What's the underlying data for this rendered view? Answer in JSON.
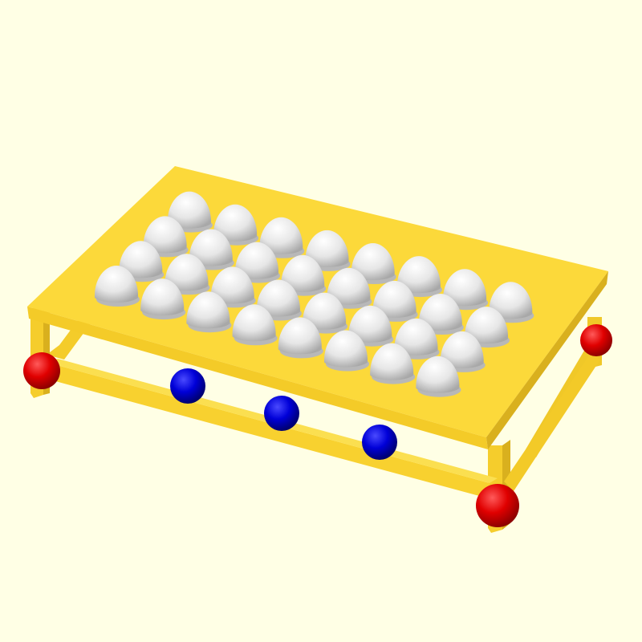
{
  "scene": {
    "background_color": "#FFFFE5",
    "frame_color": "#F8D12F",
    "tabletop_color": "#FCD93A",
    "dome_color": "#EAEAEA",
    "corner_sphere_color": "#E00000",
    "side_sphere_color": "#0000D8",
    "dome_rows": 4,
    "dome_columns": 8,
    "dome_count": 32,
    "corner_sphere_count": 4,
    "side_sphere_count": 3
  }
}
